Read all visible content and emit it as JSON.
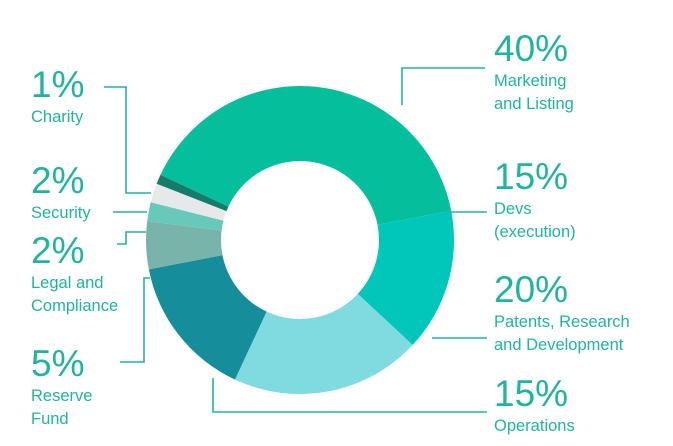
{
  "chart_data": {
    "type": "pie",
    "slices": [
      {
        "percent_label": "40%",
        "value": 40,
        "label": "Marketing\nand Listing",
        "color": "#05bf9c"
      },
      {
        "percent_label": "15%",
        "value": 15,
        "label": "Devs\n(execution)",
        "color": "#00c7b9"
      },
      {
        "percent_label": "20%",
        "value": 20,
        "label": "Patents, Research\nand Development",
        "color": "#80dbe0"
      },
      {
        "percent_label": "15%",
        "value": 15,
        "label": "Operations",
        "color": "#158d9a"
      },
      {
        "percent_label": "5%",
        "value": 5,
        "label": "Reserve\nFund",
        "color": "#78b4aa"
      },
      {
        "percent_label": "2%",
        "value": 2,
        "label": "Legal and\nCompliance",
        "color": "#66c9b9"
      },
      {
        "percent_label": "2%",
        "value": 2,
        "label": "Security",
        "color": "#e6e9e9"
      },
      {
        "percent_label": "1%",
        "value": 1,
        "label": "Charity",
        "color": "#157c6b"
      }
    ],
    "label_color": "#1fb59c",
    "leader_color": "#1fb59c",
    "background": "#ffffff"
  }
}
